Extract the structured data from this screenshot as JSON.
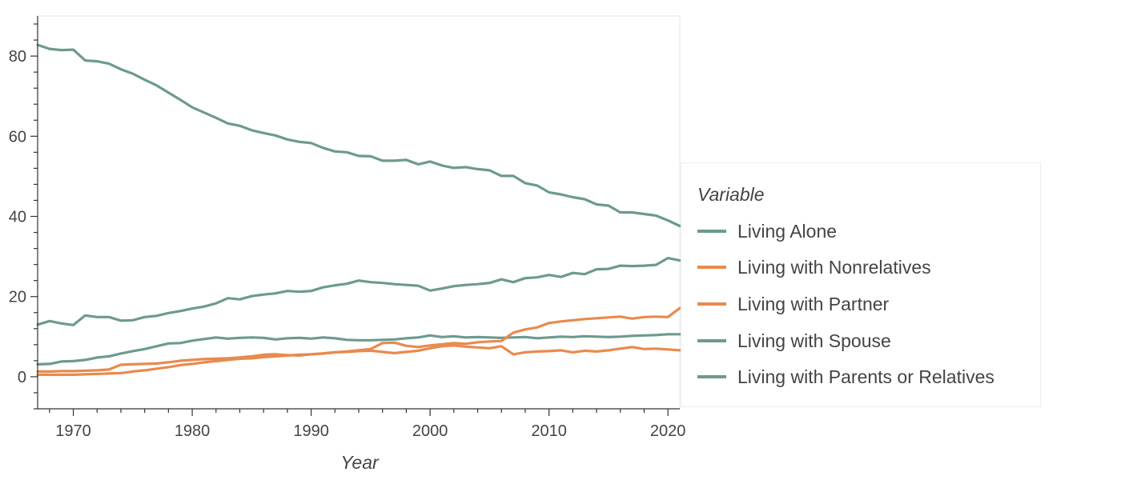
{
  "chart_data": {
    "type": "line",
    "xlabel": "Year",
    "ylabel": "",
    "xlim": [
      1967,
      2021
    ],
    "ylim": [
      -8,
      90
    ],
    "x_ticks": [
      1970,
      1980,
      1990,
      2000,
      2010,
      2020
    ],
    "y_ticks": [
      0,
      20,
      40,
      60,
      80
    ],
    "grid": false,
    "legend": {
      "title": "Variable",
      "placement": "right"
    },
    "x": [
      1967,
      1968,
      1969,
      1970,
      1971,
      1972,
      1973,
      1974,
      1975,
      1976,
      1977,
      1978,
      1979,
      1980,
      1981,
      1982,
      1983,
      1984,
      1985,
      1986,
      1987,
      1988,
      1989,
      1990,
      1991,
      1992,
      1993,
      1994,
      1995,
      1996,
      1997,
      1998,
      1999,
      2000,
      2001,
      2002,
      2003,
      2004,
      2005,
      2006,
      2007,
      2008,
      2009,
      2010,
      2011,
      2012,
      2013,
      2014,
      2015,
      2016,
      2017,
      2018,
      2019,
      2020,
      2021
    ],
    "series": [
      {
        "name": "Living Alone",
        "color": "#6d9a8e",
        "values": [
          3.1,
          3.2,
          3.8,
          3.9,
          4.2,
          4.8,
          5.1,
          5.8,
          6.4,
          6.9,
          7.6,
          8.3,
          8.4,
          9.0,
          9.4,
          9.8,
          9.5,
          9.7,
          9.8,
          9.7,
          9.3,
          9.6,
          9.7,
          9.5,
          9.8,
          9.6,
          9.2,
          9.1,
          9.1,
          9.2,
          9.3,
          9.6,
          9.8,
          10.3,
          9.9,
          10.1,
          9.8,
          9.9,
          9.8,
          9.7,
          9.8,
          9.9,
          9.6,
          9.8,
          10.0,
          9.9,
          10.1,
          10.0,
          9.9,
          10.0,
          10.2,
          10.3,
          10.4,
          10.6,
          10.6
        ]
      },
      {
        "name": "Living with Nonrelatives",
        "color": "#e88a4e",
        "values": [
          1.3,
          1.3,
          1.4,
          1.4,
          1.5,
          1.6,
          1.8,
          3.0,
          3.1,
          3.2,
          3.3,
          3.6,
          4.0,
          4.2,
          4.4,
          4.5,
          4.6,
          4.8,
          5.1,
          5.5,
          5.6,
          5.4,
          5.3,
          5.6,
          5.8,
          6.1,
          6.2,
          6.4,
          6.5,
          6.2,
          5.9,
          6.2,
          6.5,
          7.1,
          7.6,
          7.8,
          7.5,
          7.3,
          7.1,
          7.6,
          5.6,
          6.1,
          6.3,
          6.4,
          6.6,
          6.1,
          6.5,
          6.3,
          6.6,
          7.0,
          7.4,
          6.9,
          7.0,
          6.8,
          6.6
        ]
      },
      {
        "name": "Living with Partner",
        "color": "#e88a4e",
        "values": [
          0.5,
          0.5,
          0.5,
          0.5,
          0.6,
          0.7,
          0.8,
          0.9,
          1.3,
          1.6,
          2.0,
          2.4,
          2.9,
          3.2,
          3.6,
          3.9,
          4.2,
          4.5,
          4.6,
          4.9,
          5.1,
          5.3,
          5.5,
          5.6,
          5.8,
          6.1,
          6.3,
          6.6,
          6.9,
          8.4,
          8.5,
          7.7,
          7.4,
          7.8,
          8.1,
          8.4,
          8.2,
          8.6,
          8.8,
          8.9,
          11.0,
          11.8,
          12.3,
          13.4,
          13.8,
          14.1,
          14.4,
          14.6,
          14.8,
          15.0,
          14.5,
          14.9,
          15.0,
          14.9,
          17.1
        ]
      },
      {
        "name": "Living with Spouse",
        "color": "#6d9a8e",
        "values": [
          82.8,
          81.8,
          81.5,
          81.6,
          78.9,
          78.7,
          78.1,
          76.7,
          75.6,
          74.1,
          72.7,
          70.9,
          69.1,
          67.2,
          65.9,
          64.6,
          63.2,
          62.6,
          61.5,
          60.8,
          60.2,
          59.2,
          58.6,
          58.3,
          57.1,
          56.2,
          56.0,
          55.1,
          55.0,
          53.9,
          53.9,
          54.1,
          53.0,
          53.7,
          52.7,
          52.1,
          52.3,
          51.8,
          51.5,
          50.1,
          50.1,
          48.3,
          47.7,
          46.0,
          45.5,
          44.8,
          44.3,
          43.0,
          42.7,
          41.0,
          41.0,
          40.6,
          40.2,
          39.0,
          37.6
        ]
      },
      {
        "name": "Living with Parents or Relatives",
        "color": "#6d9a8e",
        "values": [
          13.0,
          13.9,
          13.3,
          12.9,
          15.3,
          14.9,
          14.9,
          14.0,
          14.1,
          14.9,
          15.2,
          15.9,
          16.4,
          17.0,
          17.5,
          18.3,
          19.6,
          19.3,
          20.1,
          20.5,
          20.8,
          21.4,
          21.2,
          21.4,
          22.3,
          22.8,
          23.2,
          24.0,
          23.6,
          23.4,
          23.1,
          22.9,
          22.7,
          21.5,
          22.0,
          22.6,
          22.9,
          23.1,
          23.4,
          24.3,
          23.6,
          24.6,
          24.8,
          25.4,
          24.9,
          25.9,
          25.6,
          26.8,
          26.9,
          27.7,
          27.6,
          27.7,
          27.9,
          29.6,
          29.0
        ]
      }
    ]
  }
}
